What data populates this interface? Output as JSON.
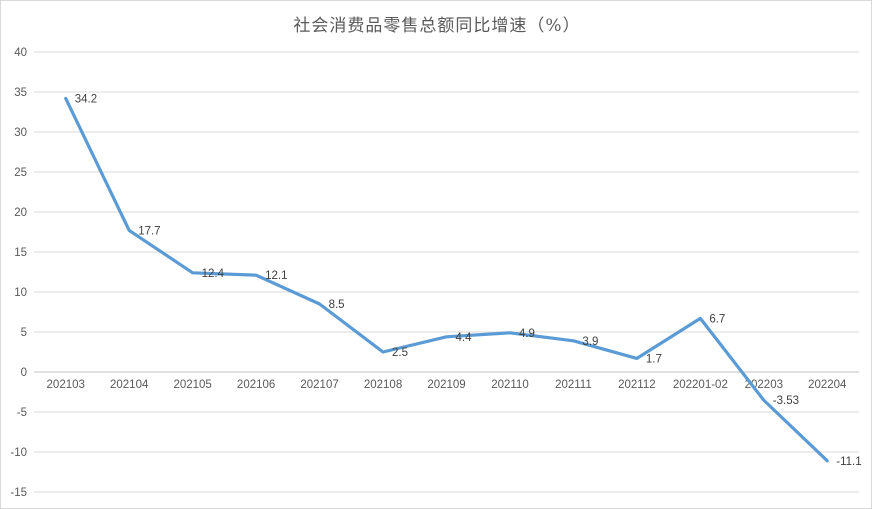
{
  "chart": {
    "title": "社会消费品零售总额同比增速（%）"
  },
  "chart_data": {
    "type": "line",
    "title": "社会消费品零售总额同比增速（%）",
    "categories": [
      "202103",
      "202104",
      "202105",
      "202106",
      "202107",
      "202108",
      "202109",
      "202110",
      "202111",
      "202112",
      "202201-02",
      "202203",
      "202204"
    ],
    "series": [
      {
        "name": "社会消费品零售总额同比增速",
        "values": [
          34.2,
          17.7,
          12.4,
          12.1,
          8.5,
          2.5,
          4.4,
          4.9,
          3.9,
          1.7,
          6.7,
          -3.53,
          -11.1
        ],
        "data_labels": [
          "34.2",
          "17.7",
          "12.4",
          "12.1",
          "8.5",
          "2.5",
          "4.4",
          "4.9",
          "3.9",
          "1.7",
          "6.7",
          "-3.53",
          "-11.1"
        ]
      }
    ],
    "xlabel": "",
    "ylabel": "",
    "ylim": [
      -15,
      40
    ],
    "ytick_step": 5,
    "ytick_labels": [
      "40",
      "35",
      "30",
      "25",
      "20",
      "15",
      "10",
      "5",
      "0",
      "-5",
      "-10",
      "-15"
    ],
    "grid": true,
    "legend_position": "none",
    "colors": {
      "line": "#5B9BD5",
      "gridline": "#d9d9d9",
      "axis_line": "#c0c0c0",
      "tick_label": "#595959",
      "data_label": "#404040",
      "title": "#595959",
      "background": "#ffffff"
    }
  }
}
